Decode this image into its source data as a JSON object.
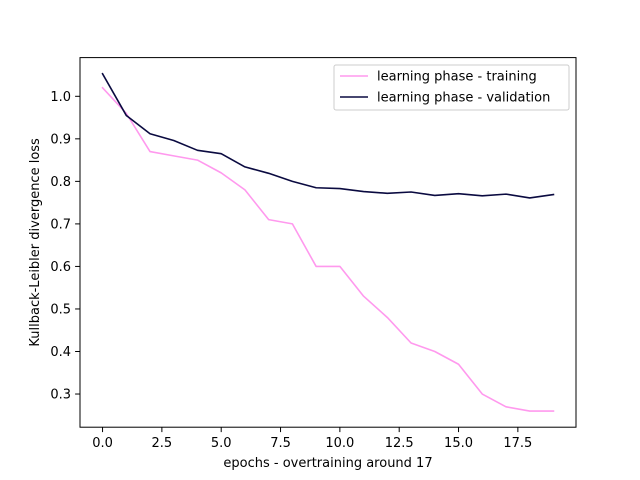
{
  "chart_data": {
    "type": "line",
    "title": "",
    "xlabel": "epochs - overtraining around 17",
    "ylabel": "Kullback-Leibler divergence loss",
    "x": [
      0,
      1,
      2,
      3,
      4,
      5,
      6,
      7,
      8,
      9,
      10,
      11,
      12,
      13,
      14,
      15,
      16,
      17,
      18,
      19
    ],
    "xlim": [
      -0.95,
      19.95
    ],
    "ylim": [
      0.222,
      1.091
    ],
    "xticks": [
      0.0,
      2.5,
      5.0,
      7.5,
      10.0,
      12.5,
      15.0,
      17.5
    ],
    "xtick_labels": [
      "0.0",
      "2.5",
      "5.0",
      "7.5",
      "10.0",
      "12.5",
      "15.0",
      "17.5"
    ],
    "yticks": [
      0.3,
      0.4,
      0.5,
      0.6,
      0.7,
      0.8,
      0.9,
      1.0
    ],
    "ytick_labels": [
      "0.3",
      "0.4",
      "0.5",
      "0.6",
      "0.7",
      "0.8",
      "0.9",
      "1.0"
    ],
    "grid": false,
    "legend_position": "top-right",
    "series": [
      {
        "name": "learning phase - training",
        "color": "#ff99ee",
        "values": [
          1.02,
          0.96,
          0.87,
          0.86,
          0.85,
          0.82,
          0.78,
          0.71,
          0.7,
          0.6,
          0.6,
          0.53,
          0.48,
          0.42,
          0.4,
          0.37,
          0.3,
          0.27,
          0.26,
          0.26
        ]
      },
      {
        "name": "learning phase - validation",
        "color": "#0a0a40",
        "values": [
          1.053,
          0.955,
          0.912,
          0.896,
          0.873,
          0.865,
          0.834,
          0.819,
          0.8,
          0.785,
          0.783,
          0.776,
          0.772,
          0.775,
          0.767,
          0.771,
          0.766,
          0.77,
          0.761,
          0.769
        ]
      }
    ]
  }
}
